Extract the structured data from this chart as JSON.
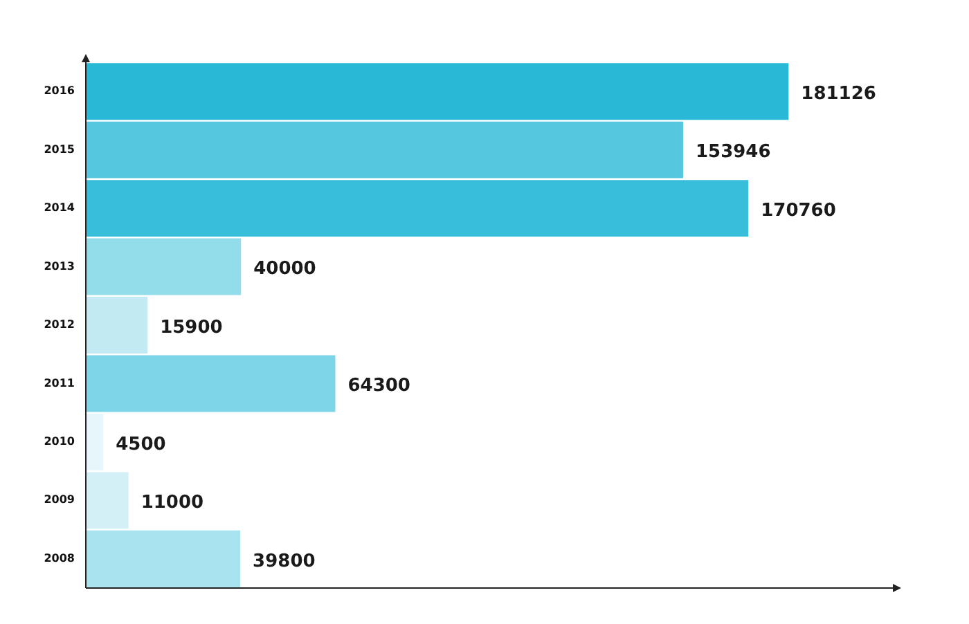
{
  "chart_data": {
    "type": "bar",
    "orientation": "horizontal",
    "categories": [
      "2016",
      "2015",
      "2014",
      "2013",
      "2012",
      "2011",
      "2010",
      "2009",
      "2008"
    ],
    "values": [
      181126,
      153946,
      170760,
      40000,
      15900,
      64300,
      4500,
      11000,
      39800
    ],
    "colors": [
      "#29b9d6",
      "#55c8e0",
      "#38bedb",
      "#93dcea",
      "#c2eaf3",
      "#7dd5e7",
      "#e6f6fa",
      "#d2f0f6",
      "#a8e3ef"
    ],
    "xlim": [
      0,
      208000
    ],
    "data_labels": true,
    "tick_labels": "y",
    "grid": false,
    "legend": false
  }
}
